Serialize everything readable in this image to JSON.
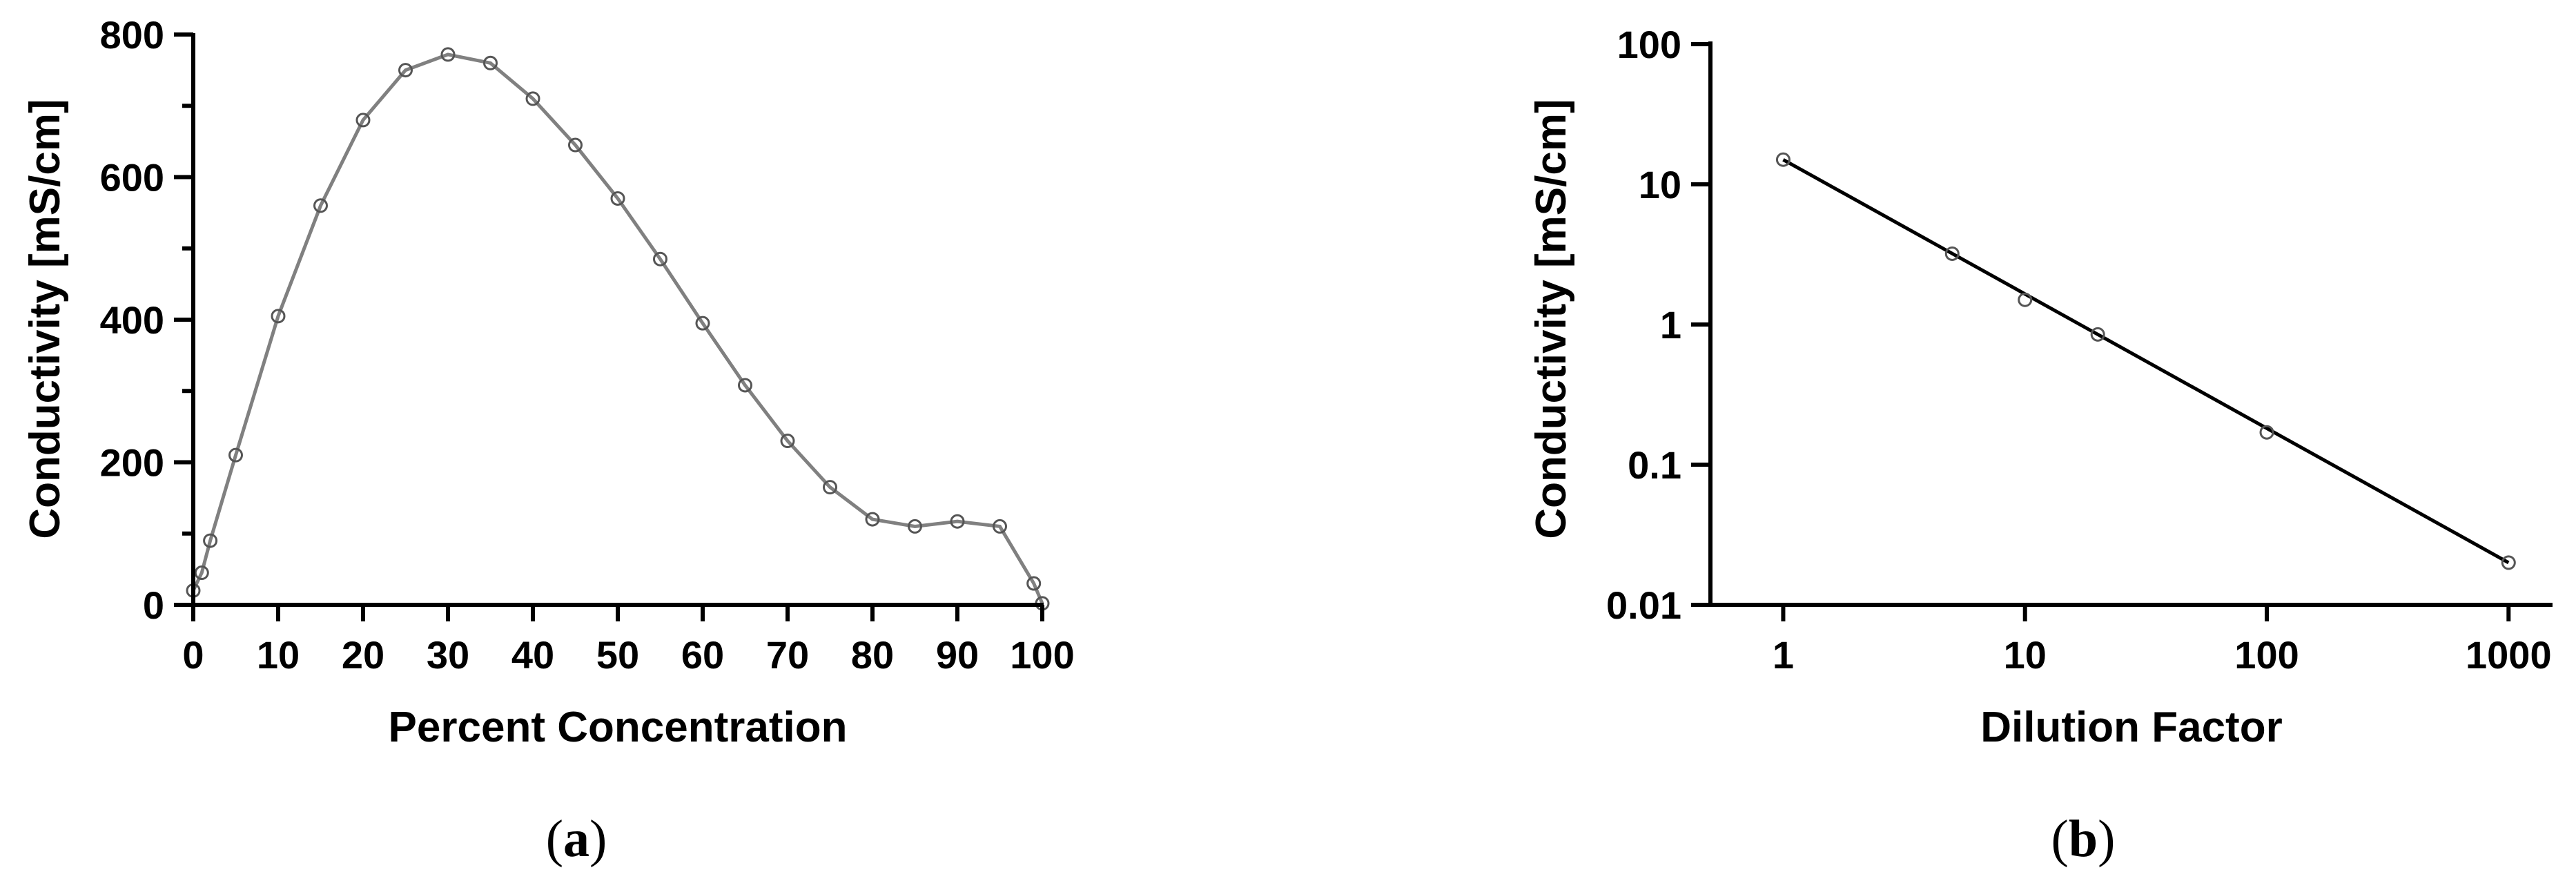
{
  "chart_data": [
    {
      "type": "line",
      "panel_label": "a",
      "xlabel": "Percent Concentration",
      "ylabel": "Conductivity [mS/cm]",
      "xlim": [
        0,
        100
      ],
      "ylim": [
        0,
        800
      ],
      "x_ticks": [
        "0",
        "10",
        "20",
        "30",
        "40",
        "50",
        "60",
        "70",
        "80",
        "90",
        "100"
      ],
      "y_ticks": [
        "0",
        "200",
        "400",
        "600",
        "800"
      ],
      "series": [
        {
          "x": [
            0,
            1,
            2,
            5,
            10,
            15,
            20,
            25,
            30,
            35,
            40,
            45,
            50,
            55,
            60,
            65,
            70,
            75,
            80,
            85,
            90,
            95,
            99,
            100
          ],
          "y": [
            20,
            45,
            90,
            210,
            405,
            560,
            680,
            750,
            772,
            760,
            710,
            645,
            570,
            485,
            395,
            308,
            230,
            165,
            120,
            110,
            117,
            110,
            30,
            2
          ]
        }
      ]
    },
    {
      "type": "line",
      "panel_label": "b",
      "xlabel": "Dilution Factor",
      "ylabel": "Conductivity [mS/cm]",
      "x_scale": "log",
      "y_scale": "log",
      "xlim": [
        0.5,
        1500
      ],
      "ylim": [
        0.01,
        100
      ],
      "x_ticks": [
        "1",
        "10",
        "100",
        "1000"
      ],
      "y_ticks": [
        "0.01",
        "0.1",
        "1",
        "10",
        "100"
      ],
      "series": [
        {
          "x": [
            1,
            5,
            10,
            20,
            100,
            1000
          ],
          "y": [
            15,
            3.2,
            1.5,
            0.85,
            0.17,
            0.02
          ]
        }
      ]
    }
  ]
}
